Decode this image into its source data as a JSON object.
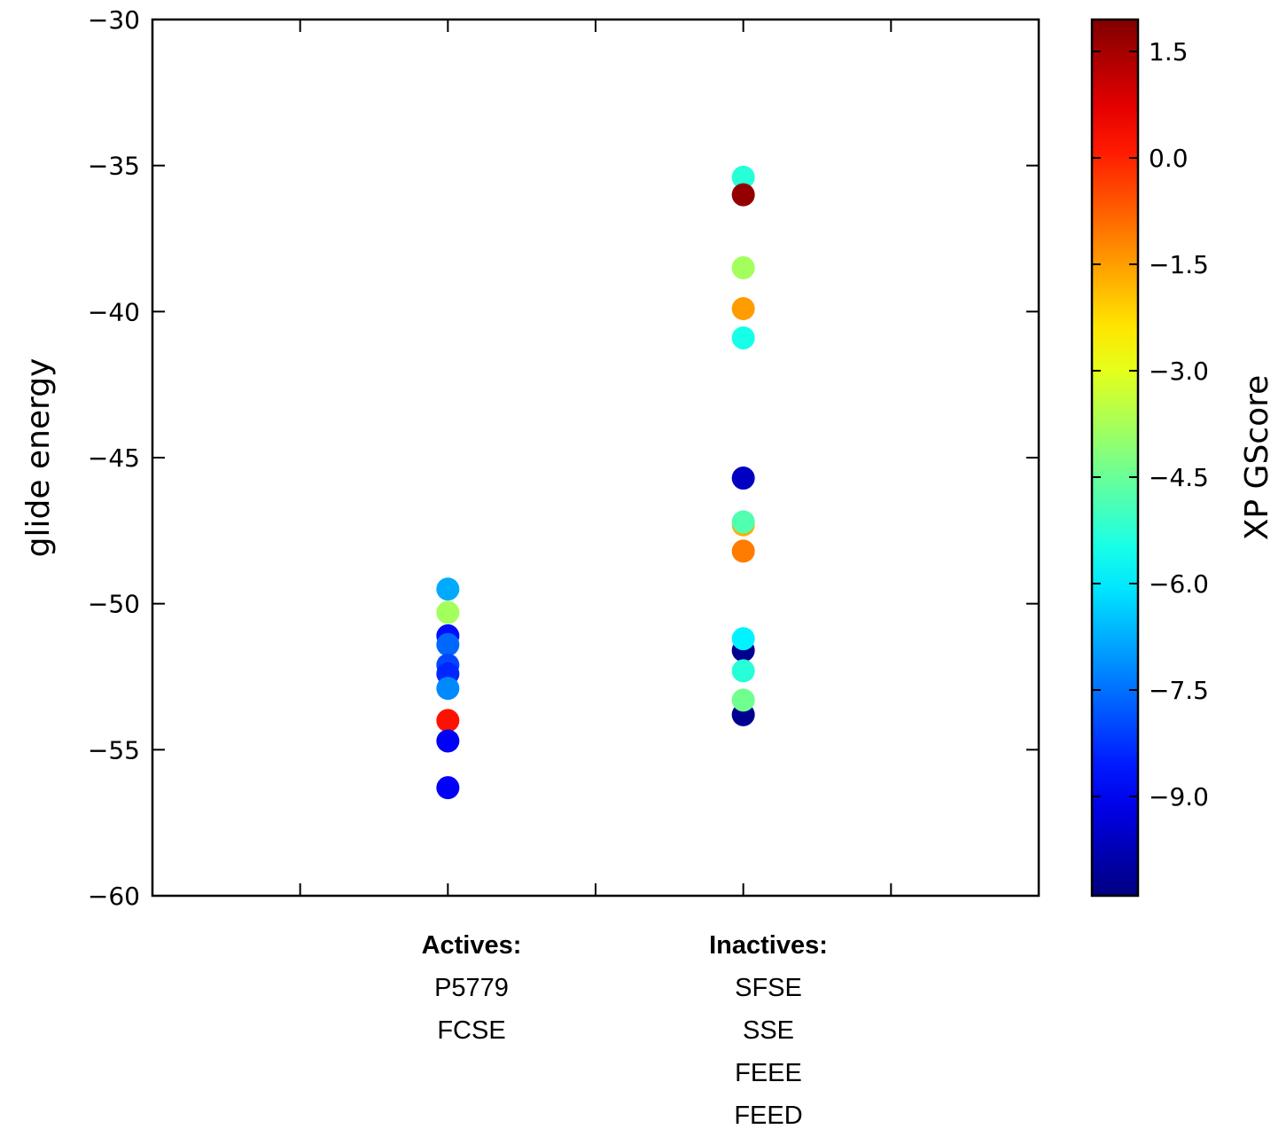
{
  "chart_data": {
    "type": "scatter",
    "ylabel": "glide energy",
    "ylim": [
      -60,
      -30
    ],
    "yticks": [
      -60,
      -55,
      -50,
      -45,
      -40,
      -35,
      -30
    ],
    "xlim": [
      -0.5,
      2.5
    ],
    "groups": [
      {
        "header": "Actives:",
        "items": [
          "P5779",
          "FCSE"
        ],
        "x": 0.5
      },
      {
        "header": "Inactives:",
        "items": [
          "SFSE",
          "SSE",
          "FEEE",
          "FEED"
        ],
        "x": 1.5
      }
    ],
    "colorbar": {
      "label": "XP GScore",
      "range": [
        -10.4,
        1.95
      ],
      "ticks": [
        "1.5",
        "0.0",
        "−1.5",
        "−3.0",
        "−4.5",
        "−6.0",
        "−7.5",
        "−9.0"
      ],
      "tick_values": [
        1.5,
        0.0,
        -1.5,
        -3.0,
        -4.5,
        -6.0,
        -7.5,
        -9.0
      ],
      "colormap": "jet"
    },
    "points": [
      {
        "group": "Actives:",
        "x": 0.5,
        "y": -49.5,
        "score": -6.8
      },
      {
        "group": "Actives:",
        "x": 0.5,
        "y": -50.3,
        "score": -3.8
      },
      {
        "group": "Actives:",
        "x": 0.5,
        "y": -51.1,
        "score": -8.7
      },
      {
        "group": "Actives:",
        "x": 0.5,
        "y": -51.4,
        "score": -7.6
      },
      {
        "group": "Actives:",
        "x": 0.5,
        "y": -52.1,
        "score": -8.0
      },
      {
        "group": "Actives:",
        "x": 0.5,
        "y": -52.4,
        "score": -8.4
      },
      {
        "group": "Actives:",
        "x": 0.5,
        "y": -52.9,
        "score": -7.2
      },
      {
        "group": "Actives:",
        "x": 0.5,
        "y": -54.0,
        "score": 0.2
      },
      {
        "group": "Actives:",
        "x": 0.5,
        "y": -54.7,
        "score": -8.9
      },
      {
        "group": "Actives:",
        "x": 0.5,
        "y": -56.3,
        "score": -8.9
      },
      {
        "group": "Inactives:",
        "x": 1.5,
        "y": -35.4,
        "score": -5.3
      },
      {
        "group": "Inactives:",
        "x": 1.5,
        "y": -36.0,
        "score": 1.7
      },
      {
        "group": "Inactives:",
        "x": 1.5,
        "y": -38.5,
        "score": -3.8
      },
      {
        "group": "Inactives:",
        "x": 1.5,
        "y": -39.9,
        "score": -1.5
      },
      {
        "group": "Inactives:",
        "x": 1.5,
        "y": -40.9,
        "score": -5.5
      },
      {
        "group": "Inactives:",
        "x": 1.5,
        "y": -45.7,
        "score": -9.6
      },
      {
        "group": "Inactives:",
        "x": 1.5,
        "y": -47.3,
        "score": -1.7
      },
      {
        "group": "Inactives:",
        "x": 1.5,
        "y": -47.2,
        "score": -4.8
      },
      {
        "group": "Inactives:",
        "x": 1.5,
        "y": -48.2,
        "score": -1.1
      },
      {
        "group": "Inactives:",
        "x": 1.5,
        "y": -51.6,
        "score": -10.2
      },
      {
        "group": "Inactives:",
        "x": 1.5,
        "y": -51.2,
        "score": -5.9
      },
      {
        "group": "Inactives:",
        "x": 1.5,
        "y": -52.3,
        "score": -5.3
      },
      {
        "group": "Inactives:",
        "x": 1.5,
        "y": -53.8,
        "score": -10.2
      },
      {
        "group": "Inactives:",
        "x": 1.5,
        "y": -53.3,
        "score": -4.4
      }
    ]
  }
}
